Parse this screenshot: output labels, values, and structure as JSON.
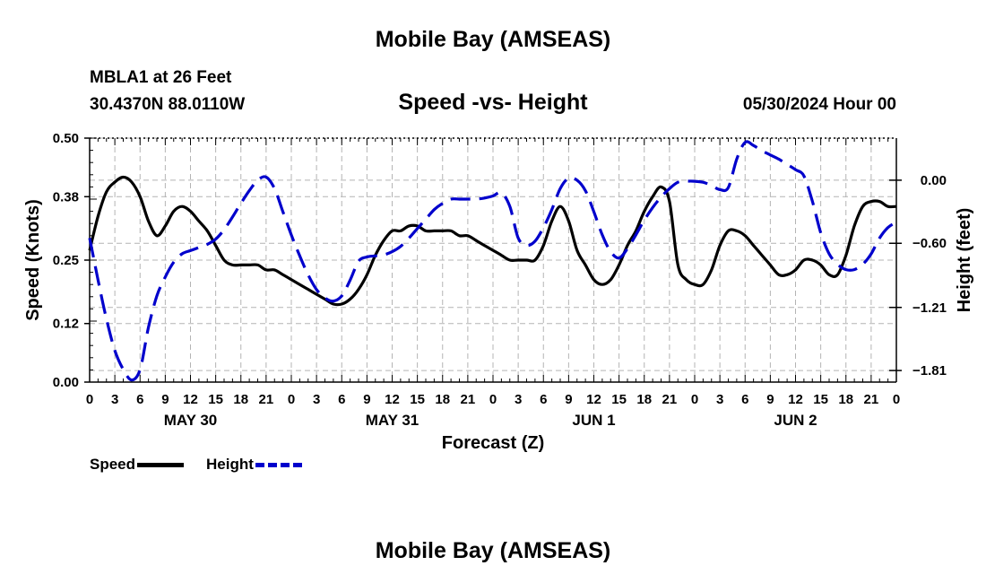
{
  "header": {
    "title": "Mobile Bay (AMSEAS)",
    "station": "MBLA1 at 26 Feet",
    "coords": "30.4370N  88.0110W",
    "subtitle": "Speed -vs- Height",
    "datetime": "05/30/2024 Hour 00"
  },
  "footer": {
    "title": "Mobile Bay (AMSEAS)"
  },
  "legend": {
    "speed_label": "Speed",
    "height_label": "Height"
  },
  "colors": {
    "speed": "#000000",
    "height": "#0000cc",
    "grid": "#b4b4b4"
  },
  "chart_data": {
    "type": "line",
    "xlabel": "Forecast (Z)",
    "ylabel_left": "Speed (Knots)",
    "ylabel_right": "Height (feet)",
    "x_range_hours": [
      0,
      96
    ],
    "x_tick_labels": [
      "0",
      "3",
      "6",
      "9",
      "12",
      "15",
      "18",
      "21",
      "0",
      "3",
      "6",
      "9",
      "12",
      "15",
      "18",
      "21",
      "0",
      "3",
      "6",
      "9",
      "12",
      "15",
      "18",
      "21",
      "0",
      "3",
      "6",
      "9",
      "12",
      "15",
      "18",
      "21",
      "0"
    ],
    "day_labels": [
      {
        "label": "MAY 30",
        "hour": 12
      },
      {
        "label": "MAY 31",
        "hour": 36
      },
      {
        "label": "JUN 1",
        "hour": 60
      },
      {
        "label": "JUN 2",
        "hour": 84
      }
    ],
    "left_axis": {
      "ylim": [
        0.0,
        0.5
      ],
      "ticks": [
        0.0,
        0.12,
        0.25,
        0.38,
        0.5
      ],
      "tick_labels": [
        "0.00",
        "0.12",
        "0.25",
        "0.38",
        "0.50"
      ]
    },
    "right_axis": {
      "ylim": [
        -1.92,
        0.4
      ],
      "ticks": [
        0.0,
        -0.6,
        -1.21,
        -1.81
      ],
      "tick_labels": [
        "0.00",
        "−0.60",
        "−1.21",
        "−1.81"
      ]
    },
    "grid": true,
    "series": [
      {
        "name": "Speed",
        "axis": "left",
        "style": "solid",
        "x": [
          0,
          1,
          2,
          3,
          4,
          5,
          6,
          7,
          8,
          9,
          10,
          11,
          12,
          13,
          14,
          15,
          16,
          17,
          18,
          19,
          20,
          21,
          22,
          23,
          24,
          25,
          26,
          27,
          28,
          29,
          30,
          31,
          32,
          33,
          34,
          35,
          36,
          37,
          38,
          39,
          40,
          41,
          42,
          43,
          44,
          45,
          46,
          47,
          48,
          49,
          50,
          51,
          52,
          53,
          54,
          55,
          56,
          57,
          58,
          59,
          60,
          61,
          62,
          63,
          64,
          65,
          66,
          67,
          68,
          69,
          70,
          71,
          72,
          73,
          74,
          75,
          76,
          77,
          78,
          79,
          80,
          81,
          82,
          83,
          84,
          85,
          86,
          87,
          88,
          89,
          90,
          91,
          92,
          93,
          94,
          95,
          96
        ],
        "y": [
          0.27,
          0.34,
          0.39,
          0.41,
          0.42,
          0.41,
          0.38,
          0.33,
          0.3,
          0.32,
          0.35,
          0.36,
          0.35,
          0.33,
          0.31,
          0.28,
          0.25,
          0.24,
          0.24,
          0.24,
          0.24,
          0.23,
          0.23,
          0.22,
          0.21,
          0.2,
          0.19,
          0.18,
          0.17,
          0.16,
          0.16,
          0.17,
          0.19,
          0.22,
          0.26,
          0.29,
          0.31,
          0.31,
          0.32,
          0.32,
          0.31,
          0.31,
          0.31,
          0.31,
          0.3,
          0.3,
          0.29,
          0.28,
          0.27,
          0.26,
          0.25,
          0.25,
          0.25,
          0.25,
          0.28,
          0.33,
          0.36,
          0.33,
          0.27,
          0.24,
          0.21,
          0.2,
          0.21,
          0.24,
          0.28,
          0.31,
          0.35,
          0.38,
          0.4,
          0.37,
          0.24,
          0.21,
          0.2,
          0.2,
          0.23,
          0.28,
          0.31,
          0.31,
          0.3,
          0.28,
          0.26,
          0.24,
          0.22,
          0.22,
          0.23,
          0.25,
          0.25,
          0.24,
          0.22,
          0.22,
          0.26,
          0.32,
          0.36,
          0.37,
          0.37,
          0.36,
          0.36
        ]
      },
      {
        "name": "Height",
        "axis": "right",
        "style": "dashed",
        "x": [
          0,
          1,
          2,
          3,
          4,
          5,
          6,
          7,
          8,
          9,
          10,
          11,
          12,
          13,
          14,
          15,
          16,
          17,
          18,
          19,
          20,
          21,
          22,
          23,
          24,
          25,
          26,
          27,
          28,
          29,
          30,
          31,
          32,
          33,
          34,
          35,
          36,
          37,
          38,
          39,
          40,
          41,
          42,
          43,
          44,
          45,
          46,
          47,
          48,
          49,
          50,
          51,
          52,
          53,
          54,
          55,
          56,
          57,
          58,
          59,
          60,
          61,
          62,
          63,
          64,
          65,
          66,
          67,
          68,
          69,
          70,
          71,
          72,
          73,
          74,
          75,
          76,
          77,
          78,
          79,
          80,
          81,
          82,
          83,
          84,
          85,
          86,
          87,
          88,
          89,
          90,
          91,
          92,
          93,
          94,
          95,
          96
        ],
        "y": [
          -0.55,
          -0.95,
          -1.32,
          -1.62,
          -1.8,
          -1.9,
          -1.8,
          -1.4,
          -1.1,
          -0.92,
          -0.78,
          -0.7,
          -0.67,
          -0.64,
          -0.61,
          -0.56,
          -0.47,
          -0.35,
          -0.22,
          -0.1,
          0.0,
          0.03,
          -0.08,
          -0.3,
          -0.52,
          -0.72,
          -0.9,
          -1.04,
          -1.12,
          -1.15,
          -1.1,
          -0.95,
          -0.77,
          -0.73,
          -0.72,
          -0.71,
          -0.68,
          -0.63,
          -0.55,
          -0.46,
          -0.37,
          -0.28,
          -0.22,
          -0.18,
          -0.18,
          -0.18,
          -0.18,
          -0.17,
          -0.15,
          -0.12,
          -0.25,
          -0.55,
          -0.62,
          -0.58,
          -0.45,
          -0.28,
          -0.08,
          0.02,
          0.0,
          -0.1,
          -0.3,
          -0.52,
          -0.68,
          -0.74,
          -0.65,
          -0.52,
          -0.38,
          -0.26,
          -0.16,
          -0.08,
          -0.02,
          -0.01,
          -0.01,
          -0.02,
          -0.05,
          -0.09,
          -0.07,
          0.2,
          0.36,
          0.33,
          0.28,
          0.24,
          0.2,
          0.15,
          0.1,
          0.04,
          -0.2,
          -0.5,
          -0.7,
          -0.8,
          -0.85,
          -0.85,
          -0.8,
          -0.7,
          -0.55,
          -0.45,
          -0.4
        ]
      }
    ]
  }
}
